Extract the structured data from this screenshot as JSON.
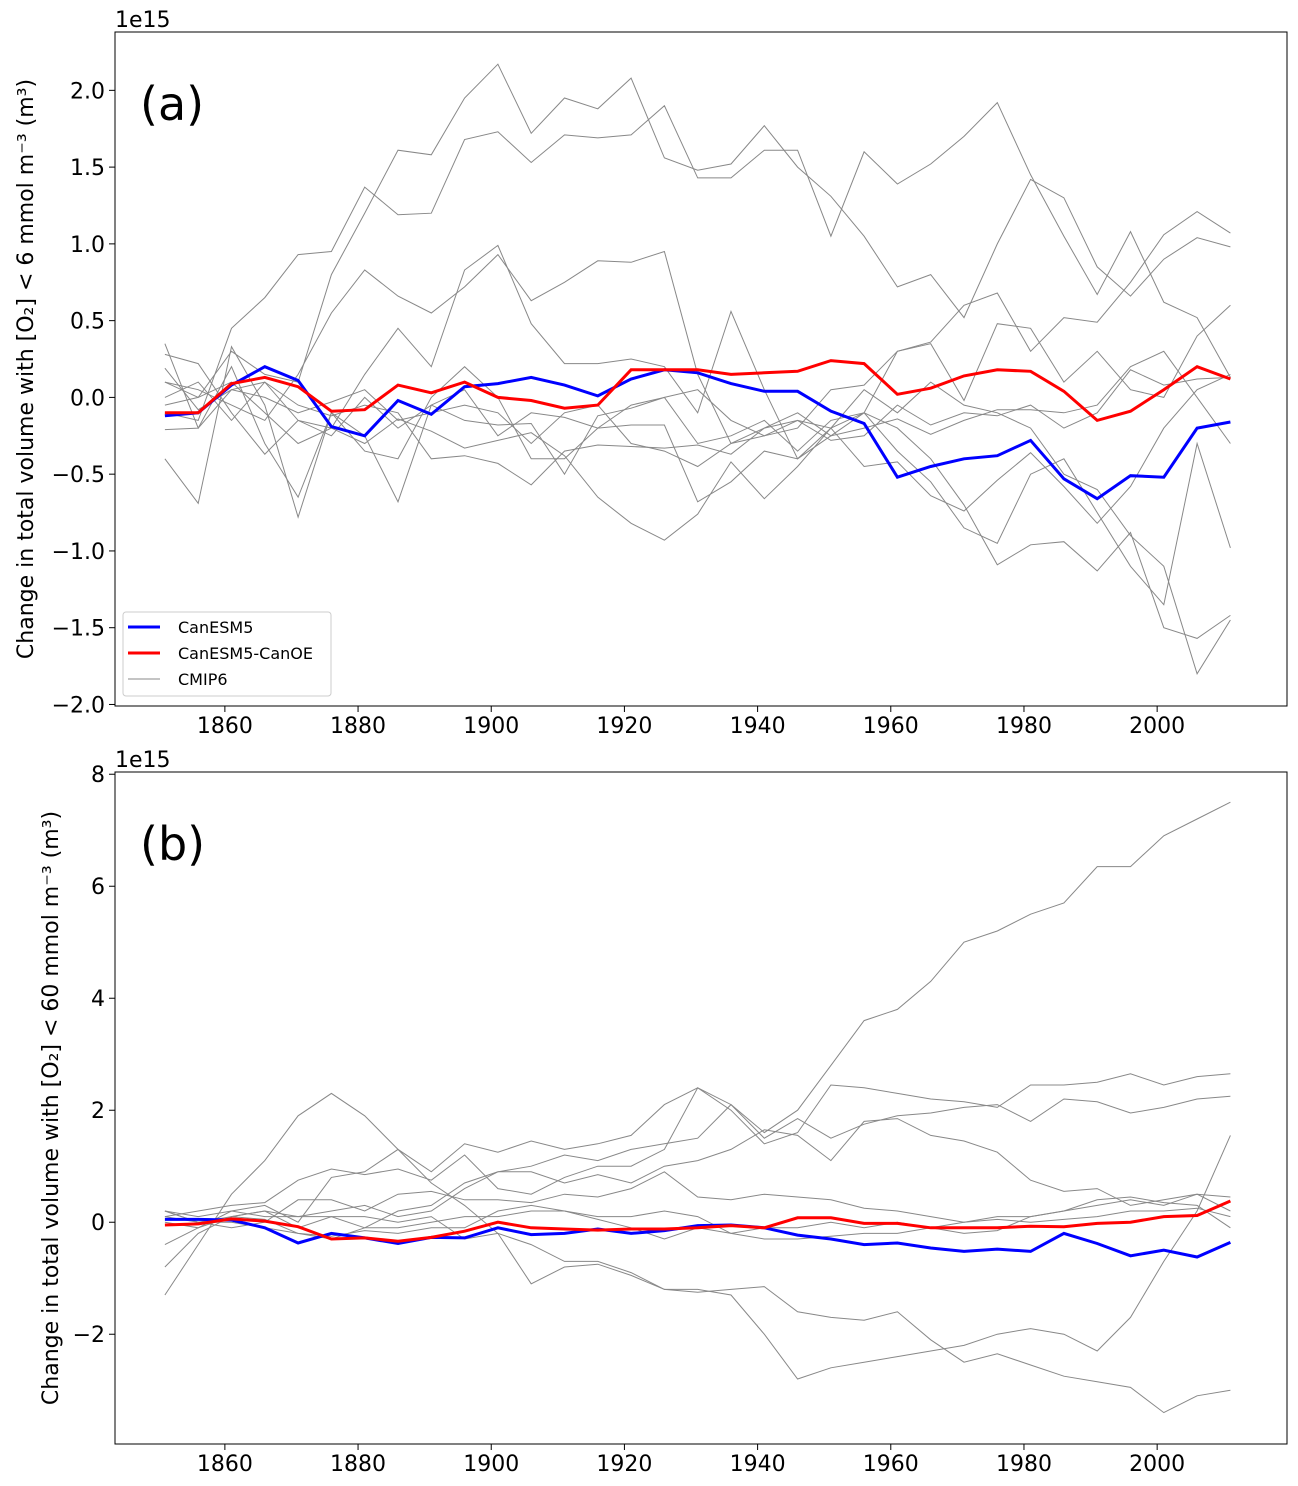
{
  "colors": {
    "CanESM5": "#0000ff",
    "CanESM5-CanOE": "#ff0000",
    "CMIP6": "#888888"
  },
  "chart_data": [
    {
      "type": "line",
      "panel_label": "(a)",
      "offset_text": "1e15",
      "ylabel": "Change in total volume with [O₂] < 6 mmol m⁻³ (m³)",
      "xlabel": "",
      "xlim": [
        1843.5,
        2019.5
      ],
      "ylim": [
        -2.01,
        2.38
      ],
      "xticks": [
        1860,
        1880,
        1900,
        1920,
        1940,
        1960,
        1980,
        2000
      ],
      "yticks": [
        -2.0,
        -1.5,
        -1.0,
        -0.5,
        0.0,
        0.5,
        1.0,
        1.5,
        2.0
      ],
      "ytick_labels": [
        "−2.0",
        "−1.5",
        "−1.0",
        "−0.5",
        "0.0",
        "0.5",
        "1.0",
        "1.5",
        "2.0"
      ],
      "legend": {
        "placement": "lower-left",
        "entries": [
          "CanESM5",
          "CanESM5-CanOE",
          "CMIP6"
        ]
      },
      "x": [
        1851,
        1856,
        1861,
        1866,
        1871,
        1876,
        1881,
        1886,
        1891,
        1896,
        1901,
        1906,
        1911,
        1916,
        1921,
        1926,
        1931,
        1936,
        1941,
        1946,
        1951,
        1956,
        1961,
        1966,
        1971,
        1976,
        1981,
        1986,
        1991,
        1996,
        2001,
        2006,
        2011
      ],
      "series": [
        {
          "name": "CanESM5",
          "values": [
            -0.12,
            -0.1,
            0.08,
            0.2,
            0.11,
            -0.19,
            -0.25,
            -0.02,
            -0.11,
            0.07,
            0.09,
            0.13,
            0.08,
            0.01,
            0.12,
            0.18,
            0.16,
            0.09,
            0.04,
            0.04,
            -0.09,
            -0.17,
            -0.52,
            -0.45,
            -0.4,
            -0.38,
            -0.28,
            -0.53,
            -0.66,
            -0.51,
            -0.52,
            -0.2,
            -0.16
          ]
        },
        {
          "name": "CanESM5-CanOE",
          "values": [
            -0.1,
            -0.1,
            0.09,
            0.13,
            0.07,
            -0.09,
            -0.08,
            0.08,
            0.03,
            0.1,
            0.0,
            -0.02,
            -0.07,
            -0.05,
            0.18,
            0.18,
            0.18,
            0.15,
            0.16,
            0.17,
            0.24,
            0.22,
            0.02,
            0.06,
            0.14,
            0.18,
            0.17,
            0.04,
            -0.15,
            -0.09,
            0.05,
            0.2,
            0.12
          ]
        },
        {
          "name": "CMIP6",
          "values": [
            0.1,
            0.0,
            0.3,
            0.15,
            0.1,
            0.8,
            1.2,
            1.61,
            1.58,
            1.95,
            2.17,
            1.72,
            1.95,
            1.88,
            2.08,
            1.56,
            1.48,
            1.52,
            1.77,
            1.5,
            1.31,
            1.05,
            0.72,
            0.8,
            0.52,
            1.0,
            1.42,
            1.3,
            0.85,
            0.66,
            0.9,
            1.04,
            0.98
          ]
        },
        {
          "name": "CMIP6",
          "values": [
            -0.1,
            -0.15,
            0.45,
            0.65,
            0.93,
            0.95,
            1.37,
            1.19,
            1.2,
            1.68,
            1.73,
            1.53,
            1.71,
            1.69,
            1.71,
            1.9,
            1.43,
            1.43,
            1.61,
            1.61,
            1.05,
            1.6,
            1.39,
            1.52,
            1.7,
            1.92,
            1.45,
            1.05,
            0.67,
            1.08,
            0.62,
            0.52,
            0.13
          ]
        },
        {
          "name": "CMIP6",
          "values": [
            0.1,
            0.05,
            -0.05,
            -0.15,
            0.15,
            0.55,
            0.83,
            0.66,
            0.55,
            0.72,
            0.93,
            0.63,
            0.75,
            0.89,
            0.88,
            0.95,
            0.15,
            -0.3,
            -0.2,
            -0.15,
            -0.2,
            -0.1,
            0.3,
            0.36,
            0.6,
            0.68,
            0.3,
            0.52,
            0.49,
            0.75,
            1.06,
            1.21,
            1.07
          ]
        },
        {
          "name": "CMIP6",
          "values": [
            -0.05,
            0.0,
            0.1,
            -0.1,
            -0.3,
            -0.2,
            0.15,
            0.45,
            0.2,
            0.83,
            0.99,
            0.48,
            0.22,
            0.22,
            0.25,
            0.2,
            -0.1,
            0.56,
            0.05,
            -0.4,
            -0.2,
            0.05,
            -0.1,
            0.1,
            -0.05,
            -0.1,
            -0.2,
            -0.5,
            -0.6,
            -0.9,
            -1.1,
            -1.8,
            -1.45
          ]
        },
        {
          "name": "CMIP6",
          "values": [
            0.35,
            -0.2,
            0.2,
            -0.3,
            -0.65,
            -0.1,
            -0.25,
            -0.68,
            -0.05,
            0.05,
            -0.25,
            -0.1,
            -0.13,
            -0.2,
            -0.18,
            -0.18,
            -0.68,
            -0.55,
            -0.35,
            -0.4,
            -0.25,
            -0.1,
            -0.2,
            -0.4,
            -0.7,
            -1.09,
            -0.96,
            -0.94,
            -1.13,
            -0.88,
            -1.5,
            -1.57,
            -1.42
          ]
        },
        {
          "name": "CMIP6",
          "values": [
            -0.4,
            -0.69,
            0.33,
            -0.05,
            -0.78,
            -0.1,
            -0.35,
            -0.4,
            0.0,
            0.2,
            0.0,
            -0.4,
            -0.4,
            -0.2,
            -0.05,
            0.0,
            -0.3,
            -0.25,
            -0.15,
            -0.35,
            -0.15,
            -0.1,
            -0.35,
            -0.55,
            -0.85,
            -0.95,
            -0.5,
            -0.4,
            -0.75,
            -1.1,
            -1.35,
            -0.3,
            -0.98
          ]
        },
        {
          "name": "CMIP6",
          "values": [
            0.28,
            0.22,
            -0.1,
            -0.37,
            -0.15,
            -0.2,
            -0.3,
            -0.14,
            -0.22,
            -0.33,
            -0.28,
            -0.23,
            -0.38,
            -0.65,
            -0.82,
            -0.93,
            -0.76,
            -0.42,
            -0.66,
            -0.45,
            -0.2,
            -0.45,
            -0.42,
            -0.64,
            -0.74,
            -0.54,
            -0.36,
            -0.58,
            -0.82,
            -0.58,
            -0.2,
            0.05,
            0.15
          ]
        },
        {
          "name": "CMIP6",
          "values": [
            0.19,
            -0.08,
            0.05,
            0.0,
            -0.1,
            -0.03,
            0.05,
            -0.15,
            -0.1,
            -0.05,
            -0.1,
            -0.3,
            -0.1,
            -0.05,
            -0.3,
            -0.35,
            -0.45,
            -0.3,
            -0.25,
            -0.2,
            0.05,
            0.08,
            0.3,
            0.35,
            -0.02,
            0.48,
            0.45,
            0.1,
            0.3,
            0.05,
            0.0,
            0.4,
            0.6
          ]
        },
        {
          "name": "CMIP6",
          "values": [
            -0.21,
            -0.2,
            0.05,
            0.1,
            -0.05,
            -0.12,
            -0.05,
            -0.1,
            -0.4,
            -0.38,
            -0.43,
            -0.57,
            -0.35,
            -0.31,
            -0.32,
            -0.33,
            -0.31,
            -0.37,
            -0.2,
            -0.1,
            -0.25,
            -0.2,
            -0.14,
            -0.24,
            -0.15,
            -0.08,
            -0.08,
            -0.1,
            -0.05,
            0.2,
            0.3,
            0.0,
            -0.3
          ]
        },
        {
          "name": "CMIP6",
          "values": [
            0.0,
            0.1,
            -0.15,
            0.1,
            -0.15,
            -0.25,
            0.0,
            -0.2,
            -0.05,
            -0.15,
            -0.18,
            -0.17,
            -0.5,
            -0.12,
            -0.07,
            0.0,
            0.05,
            -0.15,
            -0.25,
            -0.15,
            -0.28,
            -0.25,
            -0.05,
            -0.18,
            -0.1,
            -0.12,
            -0.05,
            -0.2,
            -0.1,
            0.18,
            0.08,
            0.12,
            0.13
          ]
        }
      ]
    },
    {
      "type": "line",
      "panel_label": "(b)",
      "offset_text": "1e15",
      "ylabel": "Change in total volume with [O₂] < 60 mmol m⁻³ (m³)",
      "xlabel": "",
      "xlim": [
        1843.5,
        2019.5
      ],
      "ylim": [
        -3.96,
        8.04
      ],
      "xticks": [
        1860,
        1880,
        1900,
        1920,
        1940,
        1960,
        1980,
        2000
      ],
      "yticks": [
        -2,
        0,
        2,
        4,
        6,
        8
      ],
      "ytick_labels": [
        "−2",
        "0",
        "2",
        "4",
        "6",
        "8"
      ],
      "x": [
        1851,
        1856,
        1861,
        1866,
        1871,
        1876,
        1881,
        1886,
        1891,
        1896,
        1901,
        1906,
        1911,
        1916,
        1921,
        1926,
        1931,
        1936,
        1941,
        1946,
        1951,
        1956,
        1961,
        1966,
        1971,
        1976,
        1981,
        1986,
        1991,
        1996,
        2001,
        2006,
        2011
      ],
      "series": [
        {
          "name": "CanESM5",
          "values": [
            0.05,
            0.05,
            0.04,
            -0.1,
            -0.37,
            -0.2,
            -0.28,
            -0.38,
            -0.27,
            -0.28,
            -0.1,
            -0.22,
            -0.2,
            -0.12,
            -0.2,
            -0.15,
            -0.06,
            -0.05,
            -0.1,
            -0.23,
            -0.3,
            -0.4,
            -0.37,
            -0.46,
            -0.52,
            -0.48,
            -0.52,
            -0.2,
            -0.38,
            -0.6,
            -0.5,
            -0.62,
            -0.36
          ]
        },
        {
          "name": "CanESM5-CanOE",
          "values": [
            -0.05,
            -0.03,
            0.06,
            0.02,
            -0.08,
            -0.3,
            -0.28,
            -0.34,
            -0.27,
            -0.16,
            0.0,
            -0.1,
            -0.12,
            -0.14,
            -0.12,
            -0.12,
            -0.1,
            -0.06,
            -0.1,
            0.08,
            0.08,
            -0.02,
            -0.02,
            -0.1,
            -0.1,
            -0.1,
            -0.07,
            -0.08,
            -0.02,
            0.0,
            0.1,
            0.12,
            0.38
          ]
        },
        {
          "name": "CMIP6",
          "values": [
            0.2,
            0.1,
            0.2,
            0.1,
            0.1,
            0.2,
            0.3,
            0.1,
            0.2,
            0.6,
            0.9,
            1.0,
            1.2,
            1.1,
            1.3,
            1.4,
            1.5,
            2.1,
            1.6,
            2.0,
            2.8,
            3.6,
            3.8,
            4.3,
            5.0,
            5.2,
            5.5,
            5.7,
            6.35,
            6.35,
            6.9,
            7.2,
            7.5
          ]
        },
        {
          "name": "CMIP6",
          "values": [
            -1.3,
            -0.4,
            0.5,
            1.1,
            1.9,
            2.3,
            1.9,
            1.3,
            0.7,
            0.3,
            -0.2,
            -1.1,
            -0.8,
            -0.75,
            -0.95,
            -1.2,
            -1.25,
            -1.2,
            -1.15,
            -1.6,
            -1.7,
            -1.75,
            -1.6,
            -2.1,
            -2.5,
            -2.35,
            -2.55,
            -2.75,
            -2.85,
            -2.95,
            -3.4,
            -3.1,
            -3.0
          ]
        },
        {
          "name": "CMIP6",
          "values": [
            0.1,
            0.2,
            0.3,
            0.35,
            0.75,
            0.95,
            0.85,
            0.95,
            0.75,
            1.2,
            0.6,
            0.5,
            0.8,
            1.0,
            1.0,
            1.3,
            2.4,
            2.0,
            1.4,
            1.6,
            2.45,
            2.4,
            2.3,
            2.2,
            2.15,
            2.05,
            2.45,
            2.45,
            2.5,
            2.65,
            2.45,
            2.6,
            2.65
          ]
        },
        {
          "name": "CMIP6",
          "values": [
            0.0,
            -0.1,
            0.2,
            0.3,
            0.0,
            0.8,
            0.9,
            1.3,
            0.9,
            1.4,
            1.25,
            1.45,
            1.3,
            1.4,
            1.55,
            2.1,
            2.4,
            2.1,
            1.5,
            1.85,
            1.5,
            1.75,
            1.9,
            1.95,
            2.05,
            2.1,
            1.8,
            2.2,
            2.15,
            1.95,
            2.05,
            2.2,
            2.25
          ]
        },
        {
          "name": "CMIP6",
          "values": [
            0.2,
            0.0,
            0.1,
            0.05,
            -0.2,
            -0.3,
            -0.1,
            0.2,
            0.3,
            0.7,
            0.9,
            0.9,
            0.7,
            0.85,
            0.7,
            1.0,
            1.1,
            1.3,
            1.65,
            1.55,
            1.1,
            1.8,
            1.85,
            1.55,
            1.45,
            1.25,
            0.75,
            0.55,
            0.6,
            0.3,
            0.4,
            0.5,
            0.2
          ]
        },
        {
          "name": "CMIP6",
          "values": [
            -0.8,
            -0.2,
            0.1,
            0.2,
            0.1,
            0.1,
            0.1,
            0.0,
            0.1,
            -0.3,
            -0.2,
            -0.4,
            -0.7,
            -0.7,
            -0.9,
            -1.2,
            -1.2,
            -1.3,
            -2.0,
            -2.8,
            -2.6,
            -2.5,
            -2.4,
            -2.3,
            -2.2,
            -2.0,
            -1.9,
            -2.0,
            -2.3,
            -1.7,
            -0.7,
            0.2,
            1.55
          ]
        },
        {
          "name": "CMIP6",
          "values": [
            0.1,
            0.0,
            -0.1,
            0.0,
            0.4,
            0.4,
            0.2,
            0.5,
            0.55,
            0.4,
            0.4,
            0.35,
            0.5,
            0.45,
            0.6,
            0.9,
            0.45,
            0.4,
            0.5,
            0.45,
            0.4,
            0.25,
            0.2,
            0.1,
            0.0,
            0.1,
            0.1,
            0.2,
            0.3,
            0.4,
            0.3,
            0.5,
            0.45
          ]
        },
        {
          "name": "CMIP6",
          "values": [
            -0.4,
            -0.1,
            0.1,
            0.2,
            -0.1,
            0.1,
            -0.1,
            -0.1,
            0.0,
            0.1,
            0.1,
            0.2,
            0.2,
            0.05,
            -0.1,
            -0.3,
            -0.1,
            -0.2,
            -0.1,
            -0.1,
            0.0,
            -0.1,
            0.0,
            -0.1,
            0.0,
            0.05,
            0.0,
            0.05,
            0.1,
            0.2,
            0.2,
            0.25,
            0.1
          ]
        },
        {
          "name": "CMIP6",
          "values": [
            0.2,
            0.0,
            0.0,
            -0.1,
            -0.2,
            -0.25,
            -0.15,
            -0.2,
            -0.1,
            -0.1,
            0.2,
            0.3,
            0.2,
            0.1,
            0.1,
            0.2,
            0.1,
            -0.2,
            -0.3,
            -0.3,
            -0.25,
            -0.2,
            -0.2,
            -0.1,
            -0.2,
            -0.15,
            0.1,
            0.2,
            0.4,
            0.45,
            0.35,
            0.3,
            -0.1
          ]
        }
      ]
    }
  ]
}
